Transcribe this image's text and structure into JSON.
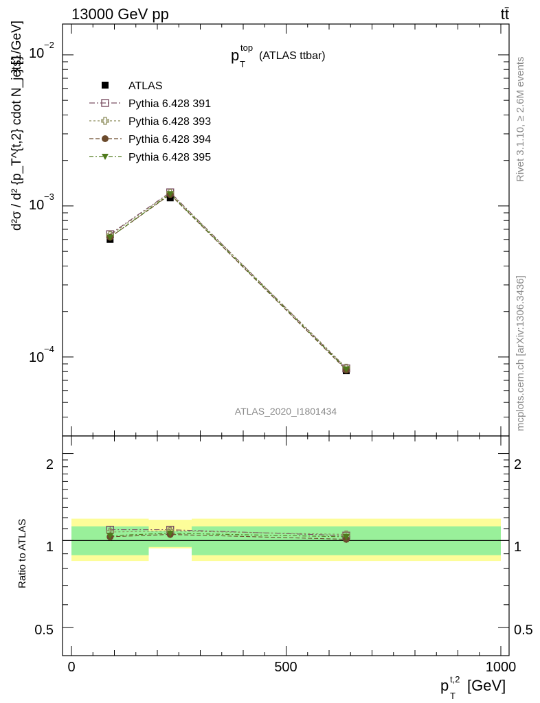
{
  "header": {
    "energy_label": "13000 GeV pp",
    "process_label": "tt̄"
  },
  "side_labels": {
    "rivet": "Rivet 3.1.10, ≥ 2.6M events",
    "source": "mcplots.cern.ch [arXiv:1306.3436]"
  },
  "main_panel": {
    "title_main": "p",
    "title_sup": "top",
    "title_sub": "T",
    "title_rest": "(ATLAS ttbar)",
    "watermark": "ATLAS_2020_I1801434",
    "ylabel_unit": "} [1/GeV]",
    "ylabel_main": "d²σ / d² {p_T^{t,2} cdot N_jets}",
    "ytick_labels": [
      "10",
      "10",
      "10"
    ],
    "ytick_exponents": [
      "−2",
      "−3",
      "−4"
    ]
  },
  "ratio_panel": {
    "ylabel": "Ratio to ATLAS",
    "ytick_labels": [
      "2",
      "1",
      "0.5"
    ],
    "ytick_labels_right": [
      "2",
      "1",
      "0.5"
    ]
  },
  "xaxis": {
    "label_main": "p",
    "label_sup": "t,2",
    "label_sub": "T",
    "label_unit": "[GeV]",
    "tick_labels": [
      "0",
      "500",
      "1000"
    ]
  },
  "legend": [
    {
      "name": "ATLAS",
      "color": "#000000",
      "marker": "square-filled"
    },
    {
      "name": "Pythia 6.428 391",
      "color": "#7b4f63",
      "marker": "square-open"
    },
    {
      "name": "Pythia 6.428 393",
      "color": "#8c8c5a",
      "marker": "cross-open"
    },
    {
      "name": "Pythia 6.428 394",
      "color": "#6b4a2c",
      "marker": "circle-filled"
    },
    {
      "name": "Pythia 6.428 395",
      "color": "#4f7a1c",
      "marker": "triangle-down"
    }
  ],
  "chart_data": {
    "type": "scatter",
    "title": "p_T^top (ATLAS ttbar)",
    "xlabel": "p_T^{t,2} [GeV]",
    "ylabel": "d²σ/d²{p_T^{t,2} cdot N_jets} [1/GeV]",
    "xlim": [
      -20,
      1020
    ],
    "ylim": [
      3e-05,
      0.016
    ],
    "yscale": "log",
    "ratio_ylim": [
      0.4,
      2.3
    ],
    "bins": [
      [
        0,
        180
      ],
      [
        180,
        280
      ],
      [
        280,
        1000
      ]
    ],
    "x": [
      90,
      230,
      640
    ],
    "series": [
      {
        "name": "ATLAS",
        "values": [
          0.0006,
          0.00113,
          8.1e-05
        ],
        "ratio": [
          1.0,
          1.0,
          1.0
        ],
        "color": "#000000"
      },
      {
        "name": "Pythia 6.428 391",
        "values": [
          0.00065,
          0.00123,
          8.4e-05
        ],
        "ratio": [
          1.09,
          1.09,
          1.04
        ],
        "color": "#7b4f63"
      },
      {
        "name": "Pythia 6.428 393",
        "values": [
          0.00064,
          0.00122,
          8.5e-05
        ],
        "ratio": [
          1.07,
          1.08,
          1.05
        ],
        "color": "#8c8c5a"
      },
      {
        "name": "Pythia 6.428 394",
        "values": [
          0.00062,
          0.00119,
          8.2e-05
        ],
        "ratio": [
          1.03,
          1.05,
          1.01
        ],
        "color": "#6b4a2c"
      },
      {
        "name": "Pythia 6.428 395",
        "values": [
          0.00062,
          0.0012,
          8.3e-05
        ],
        "ratio": [
          1.04,
          1.06,
          1.03
        ],
        "color": "#4f7a1c"
      }
    ],
    "uncertainty_bands": {
      "inner": [
        [
          0.89,
          1.12
        ],
        [
          0.95,
          1.08
        ],
        [
          0.89,
          1.12
        ]
      ],
      "outer": [
        [
          0.85,
          1.19
        ],
        [
          0.94,
          1.18
        ],
        [
          0.85,
          1.19
        ]
      ],
      "inner_color": "#99f09a",
      "outer_color": "#fdfd99"
    }
  }
}
